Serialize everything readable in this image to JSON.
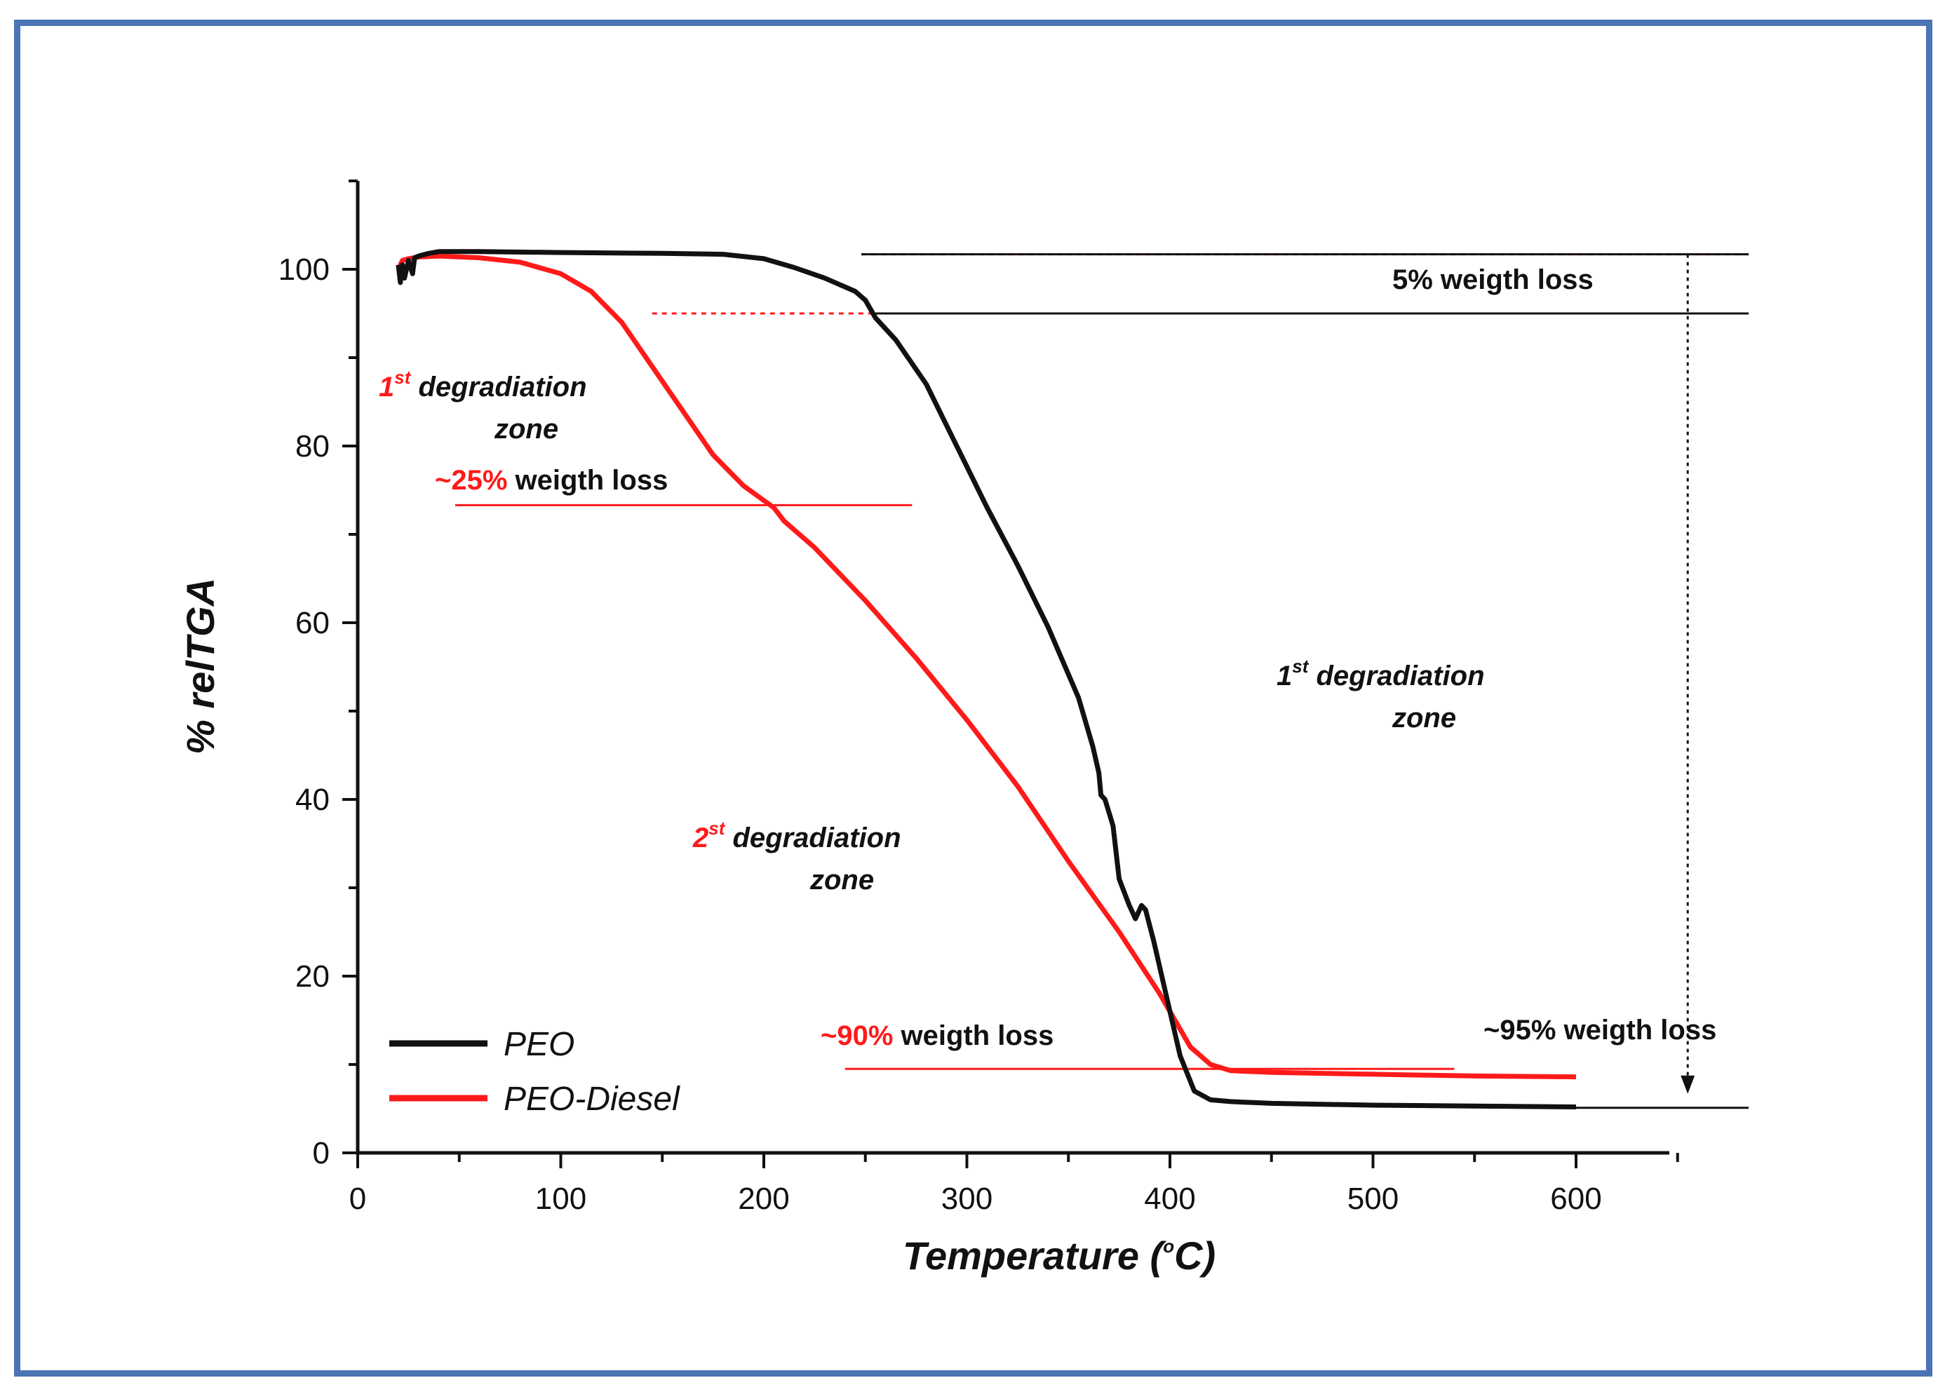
{
  "chart_data": {
    "type": "line",
    "xlabel": "Temperature (°C)",
    "xlabel_parts": {
      "pre": "Temperature (",
      "sup": "o",
      "post": "C)"
    },
    "ylabel": "% relTGA",
    "xlim": [
      0,
      650
    ],
    "ylim": [
      0,
      110
    ],
    "xticks": [
      0,
      100,
      200,
      300,
      400,
      500,
      600
    ],
    "yticks": [
      0,
      20,
      40,
      60,
      80,
      100
    ],
    "grid": false,
    "legend_position": "bottom-left",
    "colors": {
      "peo": "#111111",
      "peo_diesel": "#ff1a1a",
      "frame": "#4a74b4"
    },
    "series": [
      {
        "name": "PEO",
        "color": "#111111",
        "x": [
          20,
          21,
          22,
          23,
          25,
          27,
          28,
          30,
          35,
          40,
          60,
          100,
          150,
          180,
          200,
          215,
          230,
          245,
          250,
          255,
          265,
          280,
          295,
          310,
          325,
          340,
          355,
          362,
          365,
          366,
          368,
          370,
          372,
          375,
          380,
          383,
          386,
          388,
          392,
          398,
          405,
          412,
          420,
          430,
          450,
          500,
          550,
          600
        ],
        "y": [
          100.5,
          98.5,
          100.5,
          99.0,
          101.0,
          99.5,
          101.3,
          101.5,
          101.8,
          102.0,
          102.0,
          101.9,
          101.8,
          101.7,
          101.2,
          100.2,
          99.0,
          97.5,
          96.5,
          94.5,
          92.0,
          87.0,
          80.0,
          73.0,
          66.5,
          59.5,
          51.5,
          46.0,
          43.0,
          40.5,
          40.0,
          38.5,
          37.0,
          31.0,
          28.0,
          26.5,
          28.0,
          27.5,
          24.0,
          18.0,
          11.0,
          7.0,
          6.0,
          5.8,
          5.6,
          5.4,
          5.3,
          5.2
        ]
      },
      {
        "name": "PEO-Diesel",
        "color": "#ff1a1a",
        "x": [
          20,
          22,
          25,
          30,
          40,
          60,
          80,
          100,
          115,
          130,
          145,
          160,
          175,
          190,
          205,
          210,
          225,
          250,
          275,
          300,
          325,
          350,
          375,
          395,
          410,
          420,
          430,
          450,
          500,
          550,
          600
        ],
        "y": [
          100.0,
          101.0,
          101.2,
          101.4,
          101.5,
          101.3,
          100.8,
          99.5,
          97.5,
          94.0,
          89.0,
          84.0,
          79.0,
          75.5,
          73.0,
          71.5,
          68.5,
          62.5,
          56.0,
          49.0,
          41.5,
          33.0,
          25.0,
          18.0,
          12.0,
          10.0,
          9.3,
          9.1,
          8.9,
          8.7,
          8.6
        ]
      }
    ],
    "reference_lines": [
      {
        "name": "red-dotted-top",
        "y": 101.7,
        "x_start": 248,
        "x_end": 685,
        "style": "dotted",
        "color": "#ff1a1a"
      },
      {
        "name": "black-top",
        "y": 101.7,
        "x_start": 248,
        "x_end": 685,
        "style": "solid",
        "color": "#111111"
      },
      {
        "name": "red-dotted-95",
        "y": 95.0,
        "x_start": 145,
        "x_end": 255,
        "style": "dotted",
        "color": "#ff1a1a"
      },
      {
        "name": "black-95",
        "y": 95.0,
        "x_start": 255,
        "x_end": 685,
        "style": "solid",
        "color": "#111111"
      },
      {
        "name": "red-25-loss-line",
        "y": 73.3,
        "x_start": 48,
        "x_end": 273,
        "style": "solid",
        "color": "#ff1a1a"
      },
      {
        "name": "red-90-loss-line",
        "y": 9.5,
        "x_start": 240,
        "x_end": 540,
        "style": "solid",
        "color": "#ff1a1a"
      },
      {
        "name": "black-95-loss-line",
        "y": 5.1,
        "x_start": 600,
        "x_end": 685,
        "style": "solid",
        "color": "#111111"
      },
      {
        "name": "dotted-arrow",
        "x": 655,
        "y_start": 101.7,
        "y_end": 7.0,
        "style": "dotted",
        "color": "#111111"
      }
    ],
    "annotations": {
      "first_zone_red": {
        "num": "1",
        "sup": "st",
        "text": " degradiation",
        "line2": "zone"
      },
      "first_zone_black": {
        "num": "1",
        "sup": "st",
        "text": " degradiation",
        "line2": "zone"
      },
      "second_zone_red": {
        "num": "2",
        "sup": "st",
        "text": " degradiation",
        "line2": "zone"
      },
      "loss_25": {
        "pct": "~25%",
        "text": " weigth loss"
      },
      "loss_90": {
        "pct": "~90%",
        "text": " weigth loss"
      },
      "loss_95": {
        "text": "~95% weigth loss"
      },
      "loss_5": {
        "text": "5% weigth loss"
      }
    },
    "legend": [
      {
        "label": "PEO",
        "color": "#111111"
      },
      {
        "label": "PEO-Diesel",
        "color": "#ff1a1a"
      }
    ]
  }
}
